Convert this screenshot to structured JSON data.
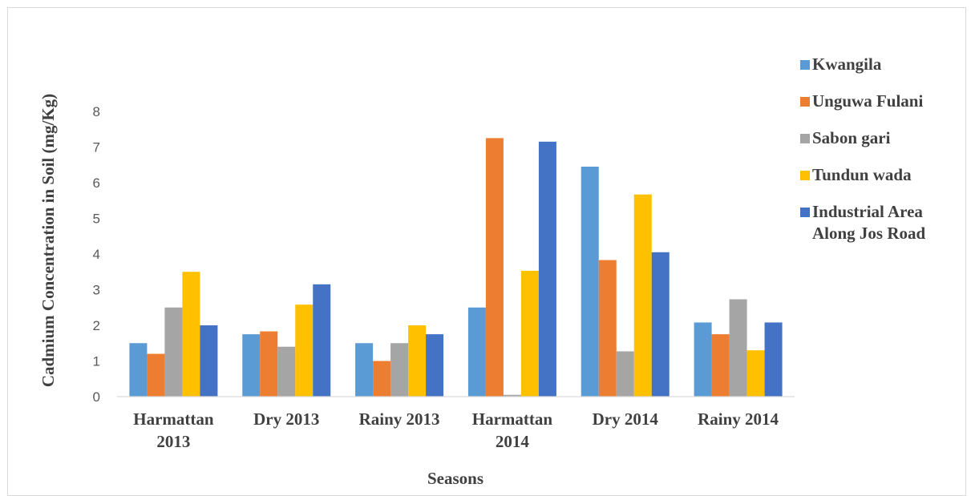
{
  "chart_data": {
    "type": "bar",
    "title": "",
    "xlabel": "Seasons",
    "ylabel": "Cadmium Concentration in Soil (mg/Kg)",
    "ylim": [
      0,
      8
    ],
    "yticks": [
      0,
      1,
      2,
      3,
      4,
      5,
      6,
      7,
      8
    ],
    "grid": false,
    "legend_position": "right",
    "categories": [
      [
        "Harmattan",
        "2013"
      ],
      [
        "Dry 2013"
      ],
      [
        "Rainy 2013"
      ],
      [
        "Harmattan",
        "2014"
      ],
      [
        "Dry 2014"
      ],
      [
        "Rainy 2014"
      ]
    ],
    "series": [
      {
        "name": "Kwangila",
        "color": "#5b9bd5",
        "values": [
          1.5,
          1.75,
          1.5,
          2.5,
          6.45,
          2.08
        ]
      },
      {
        "name": "Unguwa Fulani",
        "color": "#ed7d31",
        "values": [
          1.2,
          1.83,
          1.0,
          7.25,
          3.83,
          1.75
        ]
      },
      {
        "name": "Sabon gari",
        "color": "#a5a5a5",
        "values": [
          2.5,
          1.4,
          1.5,
          0.05,
          1.27,
          2.73
        ]
      },
      {
        "name": "Tundun wada",
        "color": "#ffc000",
        "values": [
          3.5,
          2.58,
          2.0,
          3.53,
          5.67,
          1.3
        ]
      },
      {
        "name": [
          "Industrial Area",
          "Along Jos Road"
        ],
        "color": "#4472c4",
        "values": [
          2.0,
          3.15,
          1.75,
          7.15,
          4.05,
          2.08
        ]
      }
    ]
  }
}
